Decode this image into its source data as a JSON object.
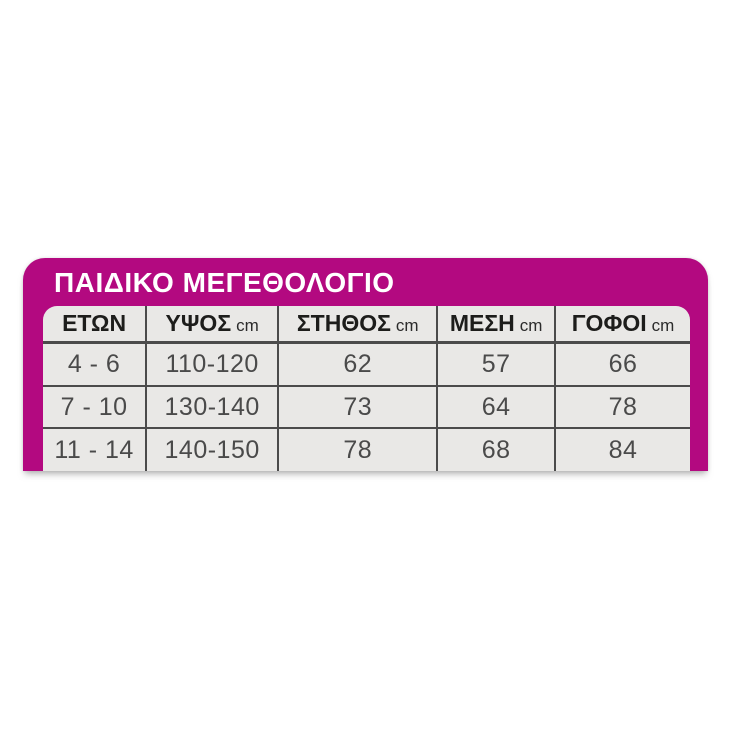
{
  "chart_data": {
    "type": "table",
    "title": "ΠΑΙΔΙΚΟ ΜΕΓΕΘΟΛΟΓΙΟ",
    "columns": [
      {
        "label": "ΕΤΩΝ",
        "unit": ""
      },
      {
        "label": "ΥΨΟΣ",
        "unit": "cm"
      },
      {
        "label": "ΣΤΗΘΟΣ",
        "unit": "cm"
      },
      {
        "label": "ΜΕΣΗ",
        "unit": "cm"
      },
      {
        "label": "ΓΟΦΟΙ",
        "unit": "cm"
      }
    ],
    "rows": [
      [
        "4 - 6",
        "110-120",
        "62",
        "57",
        "66"
      ],
      [
        "7 - 10",
        "130-140",
        "73",
        "64",
        "78"
      ],
      [
        "11 - 14",
        "140-150",
        "78",
        "68",
        "84"
      ]
    ]
  },
  "colors": {
    "card_background": "#b30980",
    "table_background": "#e9e8e6",
    "grid_line": "#4b4b4b",
    "title_text": "#ffffff",
    "header_text": "#1d1d1b",
    "data_text": "#4a4a4a",
    "page_background": "#ffffff"
  }
}
